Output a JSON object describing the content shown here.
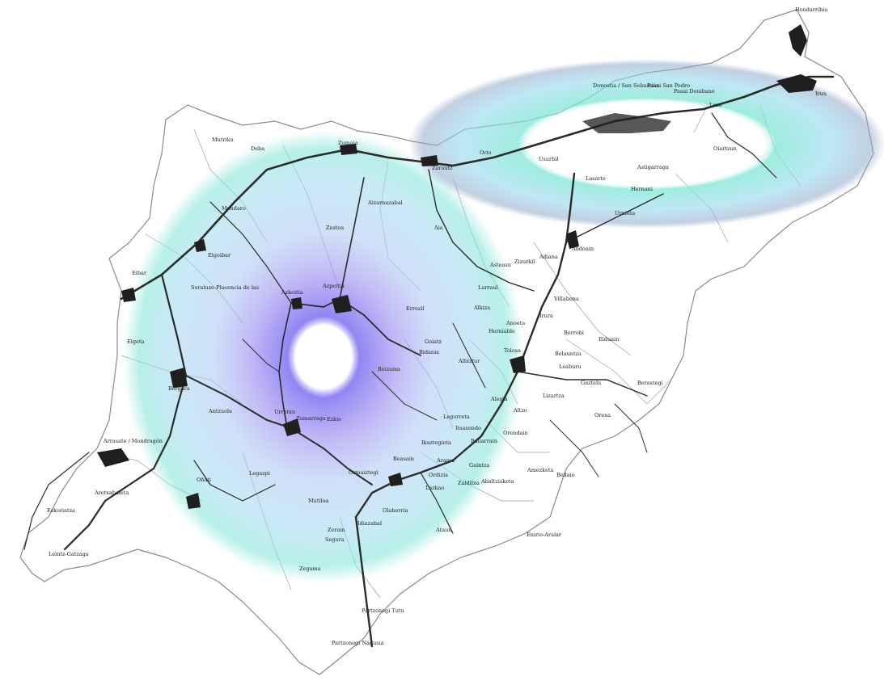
{
  "map": {
    "region": "Gipuzkoa",
    "colors": {
      "background": "#ffffff",
      "boundary": "#8a8a8a",
      "roads": "#2b2b2b",
      "urban": "#1f1f1f",
      "ring_outer": "#7ee3d8",
      "ring_mid": "#a6c8f2",
      "ring_inner": "#8a7df0",
      "ring_center": "#ffffff",
      "east_ring": "#7fe6d6"
    },
    "places": [
      {
        "id": "hondarribia",
        "label": "Hondarribia"
      },
      {
        "id": "irun",
        "label": "Irun"
      },
      {
        "id": "donostia",
        "label": "Donostia / San Sebastián"
      },
      {
        "id": "pasai-san-pedro",
        "label": "Pasai San Pedro"
      },
      {
        "id": "pasai-donibane",
        "label": "Pasai Donibane"
      },
      {
        "id": "lezo",
        "label": "Lezo"
      },
      {
        "id": "oiartzun",
        "label": "Oiartzun"
      },
      {
        "id": "astigarraga",
        "label": "Astigarraga"
      },
      {
        "id": "hernani",
        "label": "Hernani"
      },
      {
        "id": "lasarte",
        "label": "Lasarte"
      },
      {
        "id": "usurbil",
        "label": "Usurbil"
      },
      {
        "id": "orio",
        "label": "Orio"
      },
      {
        "id": "zarautz",
        "label": "Zarautz"
      },
      {
        "id": "zumaia",
        "label": "Zumaia"
      },
      {
        "id": "deba",
        "label": "Deba"
      },
      {
        "id": "mutriku",
        "label": "Mutriku"
      },
      {
        "id": "mendaro",
        "label": "Mendaro"
      },
      {
        "id": "elgoibar",
        "label": "Elgoibar"
      },
      {
        "id": "eibar",
        "label": "Eibar"
      },
      {
        "id": "soraluze",
        "label": "Soraluze-Placencia de las"
      },
      {
        "id": "elgeta",
        "label": "Elgeta"
      },
      {
        "id": "bergara",
        "label": "Bergara"
      },
      {
        "id": "arrasate",
        "label": "Arrasate / Mondragón"
      },
      {
        "id": "aretxabaleta",
        "label": "Aretxabaleta"
      },
      {
        "id": "eskoriatza",
        "label": "Eskoriatza"
      },
      {
        "id": "leintz-gatzaga",
        "label": "Leintz-Gatzaga"
      },
      {
        "id": "onati",
        "label": "Oñati"
      },
      {
        "id": "antzuola",
        "label": "Antzuola"
      },
      {
        "id": "legazpi",
        "label": "Legazpi"
      },
      {
        "id": "urretxu",
        "label": "Urretxu"
      },
      {
        "id": "zumarraga",
        "label": "Zumarraga"
      },
      {
        "id": "ezkio",
        "label": "Ezkio"
      },
      {
        "id": "azkoitia",
        "label": "Azkoitia"
      },
      {
        "id": "azpeitia",
        "label": "Azpeitia"
      },
      {
        "id": "zestoa",
        "label": "Zestoa"
      },
      {
        "id": "aizarnazabal",
        "label": "Aizarnazabal"
      },
      {
        "id": "aia",
        "label": "Aia"
      },
      {
        "id": "zizurkil",
        "label": "Zizurkil"
      },
      {
        "id": "andoain",
        "label": "Andoain"
      },
      {
        "id": "urnieta",
        "label": "Urnieta"
      },
      {
        "id": "adiana",
        "label": "Adiana"
      },
      {
        "id": "asteasu",
        "label": "Asteasu"
      },
      {
        "id": "larraul",
        "label": "Larraul"
      },
      {
        "id": "alkiza",
        "label": "Alkiza"
      },
      {
        "id": "villabona",
        "label": "Villabona"
      },
      {
        "id": "irura",
        "label": "Irura"
      },
      {
        "id": "hernialde",
        "label": "Hernialde"
      },
      {
        "id": "anoeta",
        "label": "Anoeta"
      },
      {
        "id": "tolosa",
        "label": "Tolosa"
      },
      {
        "id": "berrobi",
        "label": "Berrobi"
      },
      {
        "id": "elduain",
        "label": "Elduain"
      },
      {
        "id": "belauntza",
        "label": "Belauntza"
      },
      {
        "id": "leaburu",
        "label": "Leaburu"
      },
      {
        "id": "gaztelu",
        "label": "Gaztelu"
      },
      {
        "id": "berastegi",
        "label": "Berastegi"
      },
      {
        "id": "lizartza",
        "label": "Lizartza"
      },
      {
        "id": "orexa",
        "label": "Orexa"
      },
      {
        "id": "errezil",
        "label": "Errezil"
      },
      {
        "id": "bidania",
        "label": "Bidania"
      },
      {
        "id": "goiatz",
        "label": "Goiatz"
      },
      {
        "id": "beizama",
        "label": "Beizama"
      },
      {
        "id": "albiztur",
        "label": "Albiztur"
      },
      {
        "id": "alegia",
        "label": "Alegia"
      },
      {
        "id": "altzo",
        "label": "Altzo"
      },
      {
        "id": "legorreta",
        "label": "Legorreta"
      },
      {
        "id": "orendain",
        "label": "Orendain"
      },
      {
        "id": "baliarrain",
        "label": "Baliarrain"
      },
      {
        "id": "itsasondo",
        "label": "Itsasondo"
      },
      {
        "id": "ikaztegieta",
        "label": "Ikaztegieta"
      },
      {
        "id": "arama",
        "label": "Arama"
      },
      {
        "id": "beasain",
        "label": "Beasain"
      },
      {
        "id": "ordizia",
        "label": "Ordizia"
      },
      {
        "id": "gainza",
        "label": "Gaintza"
      },
      {
        "id": "zaldibia",
        "label": "Zaldibia"
      },
      {
        "id": "abaltzisketa",
        "label": "Abaltzisketa"
      },
      {
        "id": "amezketa",
        "label": "Amezketa"
      },
      {
        "id": "bedaio",
        "label": "Bedaio"
      },
      {
        "id": "lazkao",
        "label": "Lazkao"
      },
      {
        "id": "olaberria",
        "label": "Olaberria"
      },
      {
        "id": "idiazabal",
        "label": "Idiazabal"
      },
      {
        "id": "ataun",
        "label": "Ataun"
      },
      {
        "id": "enirio-aralar",
        "label": "Enirio-Aralar"
      },
      {
        "id": "segura",
        "label": "Segura"
      },
      {
        "id": "mutiloa",
        "label": "Mutiloa"
      },
      {
        "id": "ormaiztegi",
        "label": "Ormaiztegi"
      },
      {
        "id": "zerain",
        "label": "Zerain"
      },
      {
        "id": "zegama",
        "label": "Zegama"
      },
      {
        "id": "parzonegi-tutu",
        "label": "Partzonegi Tutu"
      },
      {
        "id": "parzonegi-nagusia",
        "label": "Partzonegi Nagusia"
      }
    ]
  }
}
